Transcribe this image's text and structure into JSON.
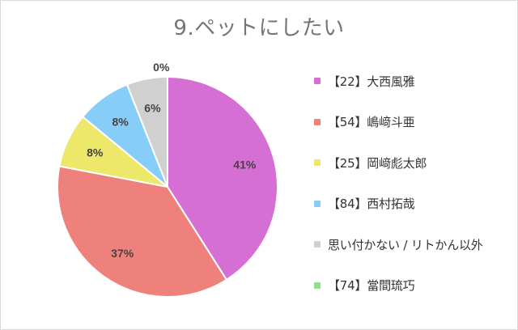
{
  "title": "9.ペットにしたい",
  "chart_data": {
    "type": "pie",
    "title": "9.ペットにしたい",
    "legend_position": "right",
    "slices": [
      {
        "label": "【22】大西風雅",
        "value": 41,
        "display": "41%",
        "color": "#d66fd4"
      },
      {
        "label": "【54】嶋﨑斗亜",
        "value": 37,
        "display": "37%",
        "color": "#ee817c"
      },
      {
        "label": "【25】岡﨑彪太郎",
        "value": 8,
        "display": "8%",
        "color": "#ede86a"
      },
      {
        "label": "【84】西村拓哉",
        "value": 8,
        "display": "8%",
        "color": "#86cdf8"
      },
      {
        "label": "思い付かない / リトかん以外",
        "value": 6,
        "display": "6%",
        "color": "#d0d0d0"
      },
      {
        "label": "【74】當間琉巧",
        "value": 0,
        "display": "0%",
        "color": "#8ce08c"
      }
    ]
  }
}
